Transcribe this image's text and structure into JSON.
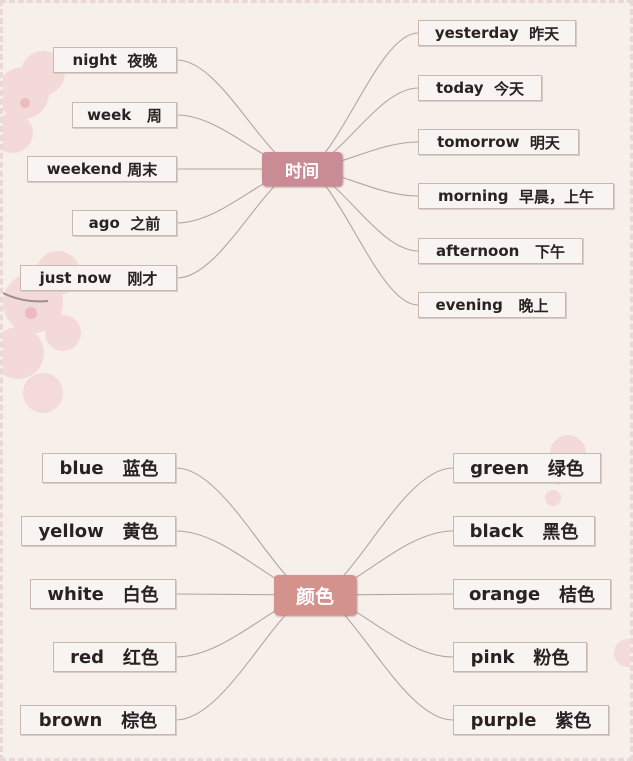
{
  "time_map": {
    "hub": "时间",
    "left": [
      {
        "en": "night",
        "zh": "夜晚"
      },
      {
        "en": "week",
        "zh": "周"
      },
      {
        "en": "weekend",
        "zh": "周末"
      },
      {
        "en": "ago",
        "zh": "之前"
      },
      {
        "en": "just now",
        "zh": "刚才"
      }
    ],
    "right": [
      {
        "en": "yesterday",
        "zh": "昨天"
      },
      {
        "en": "today",
        "zh": "今天"
      },
      {
        "en": "tomorrow",
        "zh": "明天"
      },
      {
        "en": "morning",
        "zh": "早晨，上午"
      },
      {
        "en": "afternoon",
        "zh": "下午"
      },
      {
        "en": "evening",
        "zh": "晚上"
      }
    ]
  },
  "color_map": {
    "hub": "颜色",
    "left": [
      {
        "en": "blue",
        "zh": "蓝色"
      },
      {
        "en": "yellow",
        "zh": "黄色"
      },
      {
        "en": "white",
        "zh": "白色"
      },
      {
        "en": "red",
        "zh": "红色"
      },
      {
        "en": "brown",
        "zh": "棕色"
      }
    ],
    "right": [
      {
        "en": "green",
        "zh": "绿色"
      },
      {
        "en": "black",
        "zh": "黑色"
      },
      {
        "en": "orange",
        "zh": "桔色"
      },
      {
        "en": "pink",
        "zh": "粉色"
      },
      {
        "en": "purple",
        "zh": "紫色"
      }
    ]
  }
}
